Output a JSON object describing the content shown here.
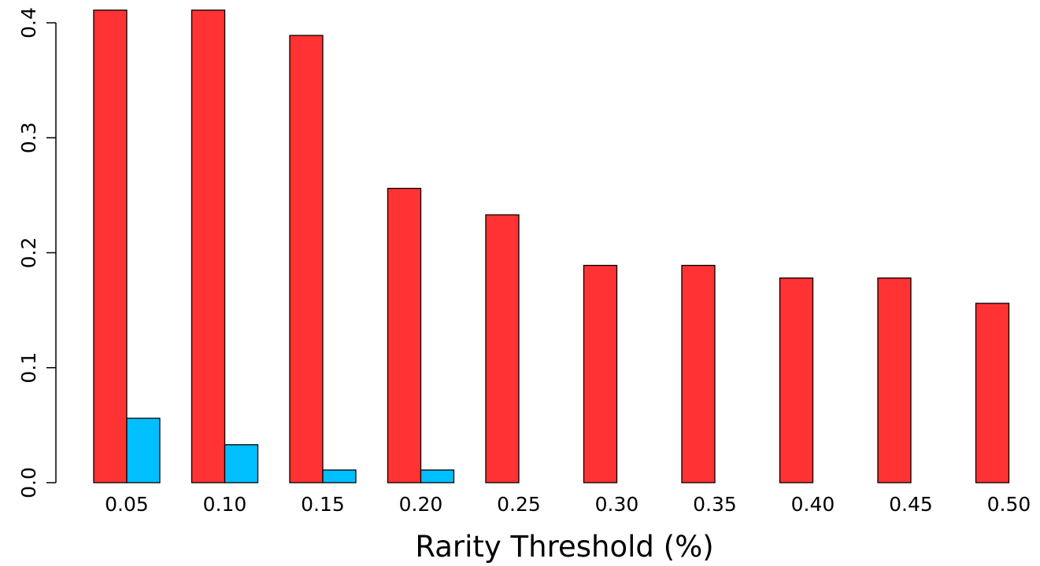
{
  "chart_data": {
    "type": "bar",
    "title": "",
    "xlabel": "Rarity Threshold (%)",
    "ylabel": "",
    "categories": [
      "0.05",
      "0.10",
      "0.15",
      "0.20",
      "0.25",
      "0.30",
      "0.35",
      "0.40",
      "0.45",
      "0.50"
    ],
    "series": [
      {
        "color": "#ff3333",
        "values": [
          0.411,
          0.411,
          0.389,
          0.256,
          0.233,
          0.189,
          0.189,
          0.178,
          0.178,
          0.156
        ]
      },
      {
        "color": "#00bfff",
        "values": [
          0.056,
          0.033,
          0.011,
          0.011,
          0.0,
          0.0,
          0.0,
          0.0,
          0.0,
          0.0
        ]
      }
    ],
    "ylim": [
      0,
      0.4
    ],
    "yticks": [
      "0.0",
      "0.1",
      "0.2",
      "0.3",
      "0.4"
    ],
    "grid": false,
    "legend": "none"
  }
}
